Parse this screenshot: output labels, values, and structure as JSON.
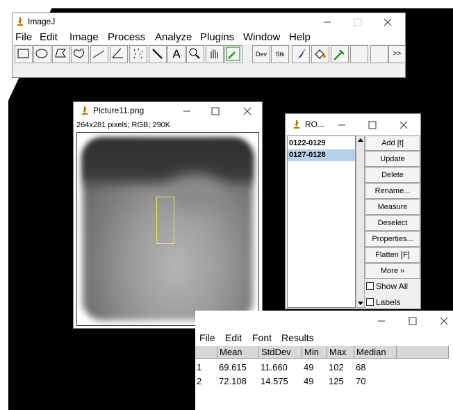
{
  "main_window": {
    "title": "ImageJ",
    "menu": [
      "File",
      "Edit",
      "Image",
      "Process",
      "Analyze",
      "Plugins",
      "Window",
      "Help"
    ],
    "toolbar_labels": [
      "A",
      "Dev",
      "Stk",
      ">>"
    ]
  },
  "image_window": {
    "title": "Picture11.png",
    "info": "264x281 pixels; RGB; 290K"
  },
  "roi_manager": {
    "title": "RO...",
    "rois": [
      "0122-0129",
      "0127-0128"
    ],
    "buttons": [
      "Add [t]",
      "Update",
      "Delete",
      "Rename...",
      "Measure",
      "Deselect",
      "Properties...",
      "Flatten [F]",
      "More »"
    ],
    "checkboxes": [
      "Show All",
      "Labels"
    ]
  },
  "results": {
    "menu": [
      "File",
      "Edit",
      "Font",
      "Results"
    ],
    "columns": [
      "Mean",
      "StdDev",
      "Min",
      "Max",
      "Median"
    ],
    "rows": [
      [
        "1",
        "69.615",
        "11.660",
        "49",
        "102",
        "68"
      ],
      [
        "2",
        "72.108",
        "14.575",
        "49",
        "125",
        "70"
      ]
    ]
  }
}
